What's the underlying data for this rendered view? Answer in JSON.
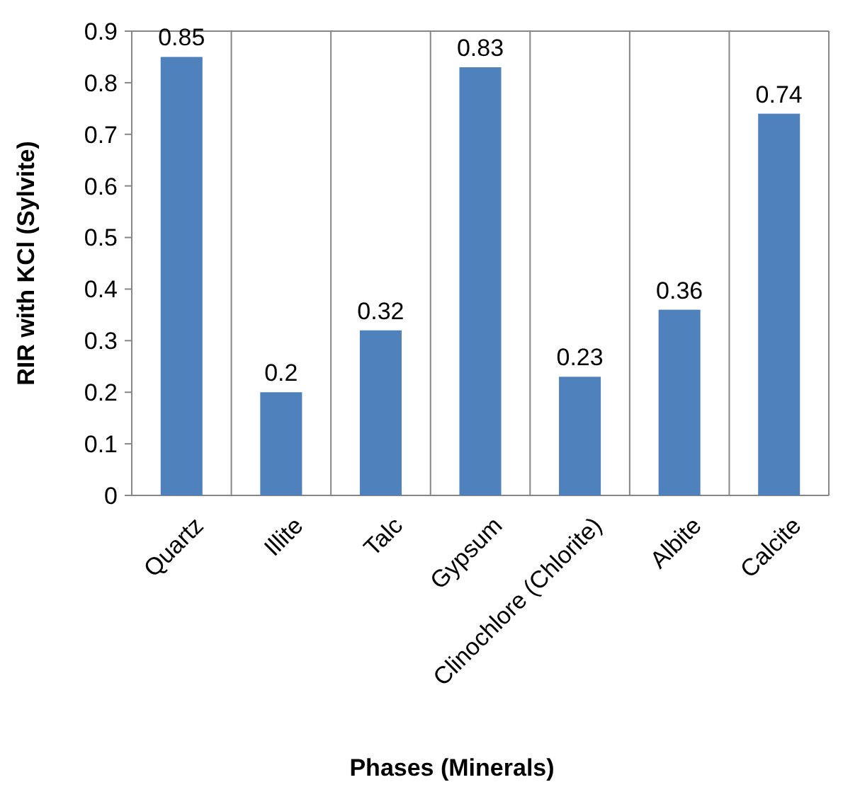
{
  "chart_data": {
    "type": "bar",
    "xlabel": "Phases (Minerals)",
    "ylabel": "RIR with KCl (Sylvite)",
    "categories": [
      "Quartz",
      "Illite",
      "Talc",
      "Gypsum",
      "Clinochlore (Chlorite)",
      "Albite",
      "Calcite"
    ],
    "values": [
      0.85,
      0.2,
      0.32,
      0.83,
      0.23,
      0.36,
      0.74
    ],
    "color": "#4f81bd",
    "ylim": [
      0,
      0.9
    ],
    "yticks": [
      0,
      0.1,
      0.2,
      0.3,
      0.4,
      0.5,
      0.6,
      0.7,
      0.8,
      0.9
    ],
    "grid": "x",
    "data_labels": true
  }
}
